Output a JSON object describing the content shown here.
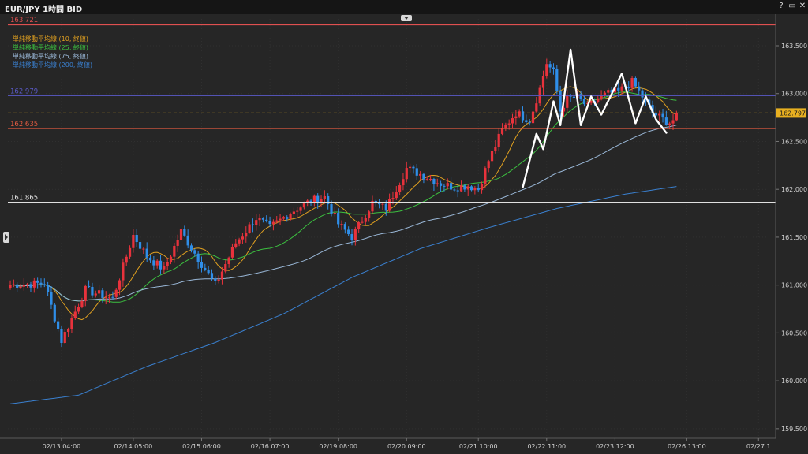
{
  "window": {
    "title": "EUR/JPY 1時間 BID",
    "help_label": "?",
    "maximize_label": "▭",
    "close_label": "✕"
  },
  "legend": [
    {
      "label": "単純移動平均線 (10, 終値)",
      "color": "#e0a020"
    },
    {
      "label": "単純移動平均線 (25, 終値)",
      "color": "#3cc040"
    },
    {
      "label": "単純移動平均線 (75, 終値)",
      "color": "#9ab8d8"
    },
    {
      "label": "単純移動平均線 (200, 終値)",
      "color": "#3a80d0"
    }
  ],
  "price_lines": [
    {
      "label": "163.721",
      "value": 163.721,
      "color": "#e05050"
    },
    {
      "label": "162.979",
      "value": 162.979,
      "color": "#5a5ac8"
    },
    {
      "label": "162.635",
      "value": 162.635,
      "color": "#e05a40"
    },
    {
      "label": "161.865",
      "value": 161.865,
      "color": "#e0e0e0"
    }
  ],
  "current_price": {
    "label": "162.797",
    "value": 162.797,
    "color": "#e8b020"
  },
  "chart_data": {
    "type": "candlestick",
    "instrument": "EUR/JPY",
    "timeframe": "1時間",
    "price_side": "BID",
    "ylim": [
      159.4,
      163.78
    ],
    "y_ticks": [
      "159.500",
      "160.000",
      "160.500",
      "161.000",
      "161.500",
      "162.000",
      "162.500",
      "163.000",
      "163.500"
    ],
    "y_tick_values": [
      159.5,
      160.0,
      160.5,
      161.0,
      161.5,
      162.0,
      162.5,
      163.0,
      163.5
    ],
    "x_ticks": [
      "02/13 04:00",
      "02/14 05:00",
      "02/15 06:00",
      "02/16 07:00",
      "02/19 08:00",
      "02/20 09:00",
      "02/21 10:00",
      "02/22 11:00",
      "02/23 12:00",
      "02/26 13:00",
      "02/27 1"
    ],
    "bar_count": 196,
    "x_tick_bar_index": [
      15,
      36,
      56,
      76,
      96,
      116,
      137,
      157,
      177,
      198,
      219
    ],
    "close_path_bar_index": [
      0,
      10,
      15,
      22,
      30,
      36,
      40,
      45,
      50,
      56,
      60,
      66,
      72,
      76,
      82,
      88,
      92,
      96,
      100,
      106,
      110,
      116,
      120,
      126,
      130,
      134,
      137,
      140,
      144,
      148,
      152,
      155,
      157,
      159,
      161,
      163,
      166,
      169,
      172,
      175,
      178,
      182,
      185,
      188,
      191,
      193,
      195
    ],
    "close_path_values": [
      161.0,
      161.02,
      160.42,
      160.95,
      160.86,
      161.52,
      161.3,
      161.16,
      161.56,
      161.22,
      161.0,
      161.44,
      161.7,
      161.6,
      161.76,
      161.88,
      161.92,
      161.64,
      161.5,
      161.86,
      161.8,
      162.22,
      162.16,
      162.06,
      162.02,
      162.04,
      162.0,
      162.3,
      162.62,
      162.8,
      162.72,
      163.05,
      163.32,
      163.22,
      162.82,
      162.95,
      162.96,
      162.86,
      162.95,
      163.0,
      163.02,
      163.12,
      162.97,
      162.8,
      162.73,
      162.7,
      162.75
    ],
    "series": [
      {
        "name": "単純移動平均線 (10, 終値)",
        "color": "#e0a020",
        "type": "sma",
        "period": 10
      },
      {
        "name": "単純移動平均線 (25, 終値)",
        "color": "#3cc040",
        "type": "sma",
        "period": 25
      },
      {
        "name": "単純移動平均線 (75, 終値)",
        "color": "#9ab8d8",
        "type": "sma",
        "period": 75
      },
      {
        "name": "単純移動平均線 (200, 終値)",
        "color": "#3a80d0",
        "type": "sma",
        "period": 200
      }
    ],
    "sma200_bar_index": [
      0,
      20,
      40,
      60,
      80,
      100,
      120,
      140,
      160,
      180,
      195
    ],
    "sma200_values": [
      159.76,
      159.85,
      160.15,
      160.4,
      160.7,
      161.08,
      161.38,
      161.6,
      161.8,
      161.95,
      162.03
    ],
    "annotation_pattern": {
      "color": "#ffffff",
      "bar_index": [
        150,
        154,
        156,
        159,
        161,
        164,
        167,
        170,
        173,
        179,
        183,
        186,
        189,
        192
      ],
      "values": [
        162.02,
        162.58,
        162.42,
        162.92,
        162.67,
        163.46,
        162.67,
        162.97,
        162.78,
        163.21,
        162.69,
        162.97,
        162.73,
        162.59
      ]
    }
  }
}
